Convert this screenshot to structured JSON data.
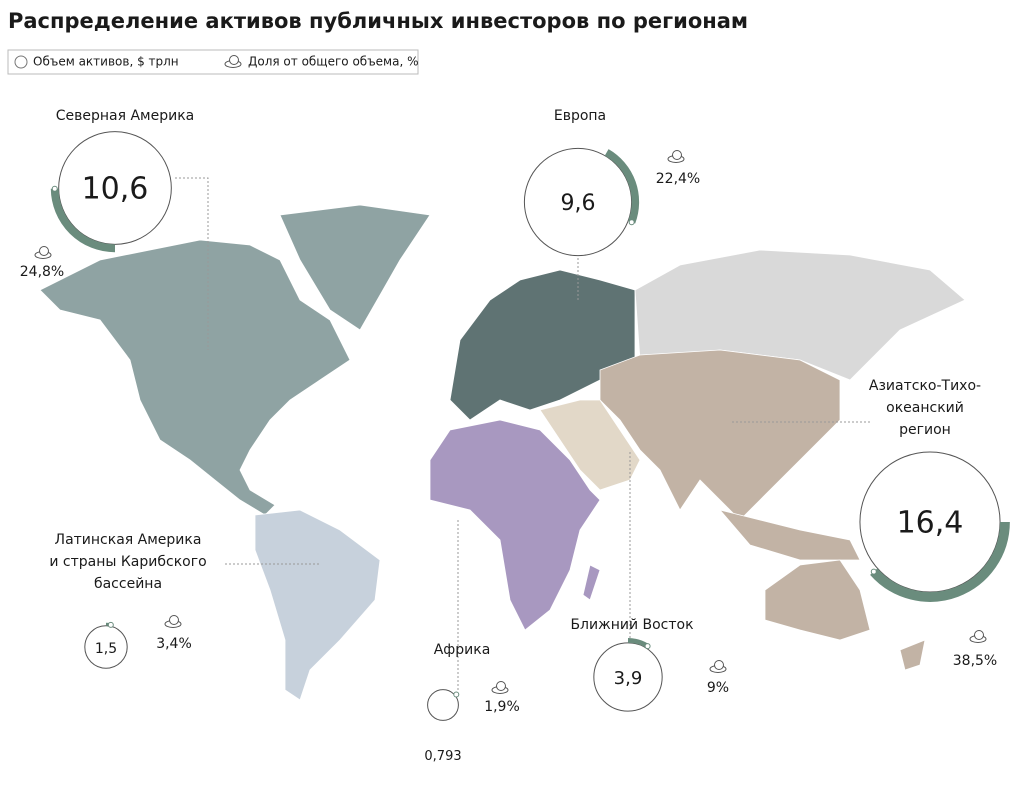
{
  "title": "Распределение активов публичных инвесторов по регионам",
  "legend": {
    "volume": "Объем активов, $ трлн",
    "share": "Доля от общего объема, %"
  },
  "regions": [
    {
      "name": [
        "Северная Америка"
      ],
      "volume": {
        "value": 10.6,
        "label": "10,6"
      },
      "share": {
        "value": 24.8,
        "label": "24,8%"
      }
    },
    {
      "name": [
        "Европа"
      ],
      "volume": {
        "value": 9.6,
        "label": "9,6"
      },
      "share": {
        "value": 22.4,
        "label": "22,4%"
      }
    },
    {
      "name": [
        "Азиатско-Тихо-",
        "океанский",
        "регион"
      ],
      "volume": {
        "value": 16.4,
        "label": "16,4"
      },
      "share": {
        "value": 38.5,
        "label": "38,5%"
      }
    },
    {
      "name": [
        "Ближний Восток"
      ],
      "volume": {
        "value": 3.9,
        "label": "3,9"
      },
      "share": {
        "value": 9,
        "label": "9%"
      }
    },
    {
      "name": [
        "Латинская Америка",
        "и страны Карибского",
        "бассейна"
      ],
      "volume": {
        "value": 1.5,
        "label": "1,5"
      },
      "share": {
        "value": 3.4,
        "label": "3,4%"
      }
    },
    {
      "name": [
        "Африка"
      ],
      "volume": {
        "value": 0.793,
        "label": "0,793"
      },
      "share": {
        "value": 1.9,
        "label": "1,9%"
      }
    }
  ]
}
